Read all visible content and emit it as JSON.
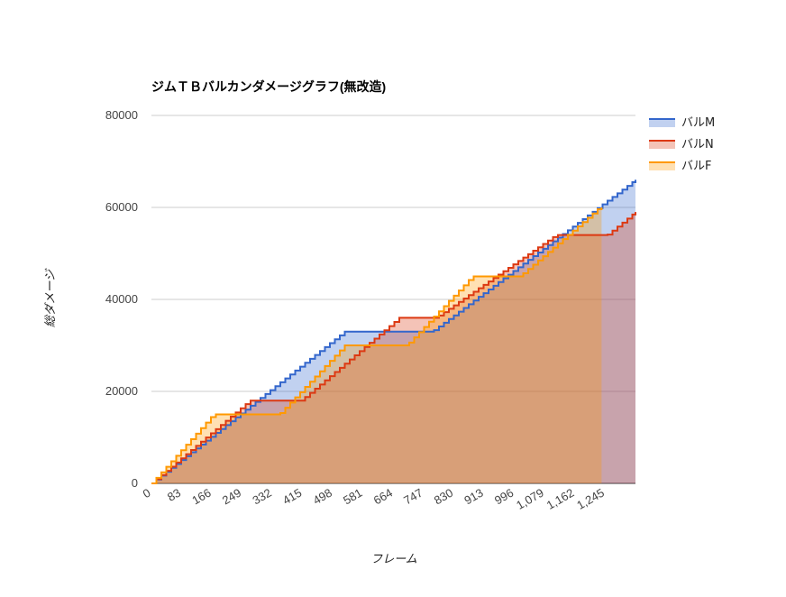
{
  "chart_data": {
    "type": "area",
    "title": "ジムＴＢバルカンダメージグラフ(無改造)",
    "xlabel": "フレーム",
    "ylabel": "総ダメージ",
    "x_ticks": [
      "0",
      "83",
      "166",
      "249",
      "332",
      "415",
      "498",
      "581",
      "664",
      "747",
      "830",
      "913",
      "996",
      "1,079",
      "1,162",
      "1,245"
    ],
    "xlim": [
      0,
      1328
    ],
    "ylim": [
      0,
      80000
    ],
    "y_ticks": [
      "0",
      "20000",
      "40000",
      "60000",
      "80000"
    ],
    "grid": true,
    "legend_position": "right",
    "series": [
      {
        "name": "バルM",
        "color": "#3366cc",
        "points": [
          [
            0,
            0
          ],
          [
            290,
            18000
          ],
          [
            530,
            33000
          ],
          [
            770,
            33000
          ],
          [
            1328,
            66000
          ]
        ]
      },
      {
        "name": "バルN",
        "color": "#dc3912",
        "points": [
          [
            0,
            0
          ],
          [
            270,
            18000
          ],
          [
            410,
            18000
          ],
          [
            680,
            36000
          ],
          [
            780,
            36000
          ],
          [
            1110,
            54000
          ],
          [
            1250,
            54000
          ],
          [
            1328,
            59000
          ]
        ]
      },
      {
        "name": "バルF",
        "color": "#ff9900",
        "points": [
          [
            0,
            0
          ],
          [
            170,
            15000
          ],
          [
            350,
            15000
          ],
          [
            530,
            30000
          ],
          [
            700,
            30000
          ],
          [
            880,
            45000
          ],
          [
            1010,
            45000
          ],
          [
            1230,
            60000
          ],
          [
            1235,
            60000
          ]
        ]
      }
    ]
  }
}
